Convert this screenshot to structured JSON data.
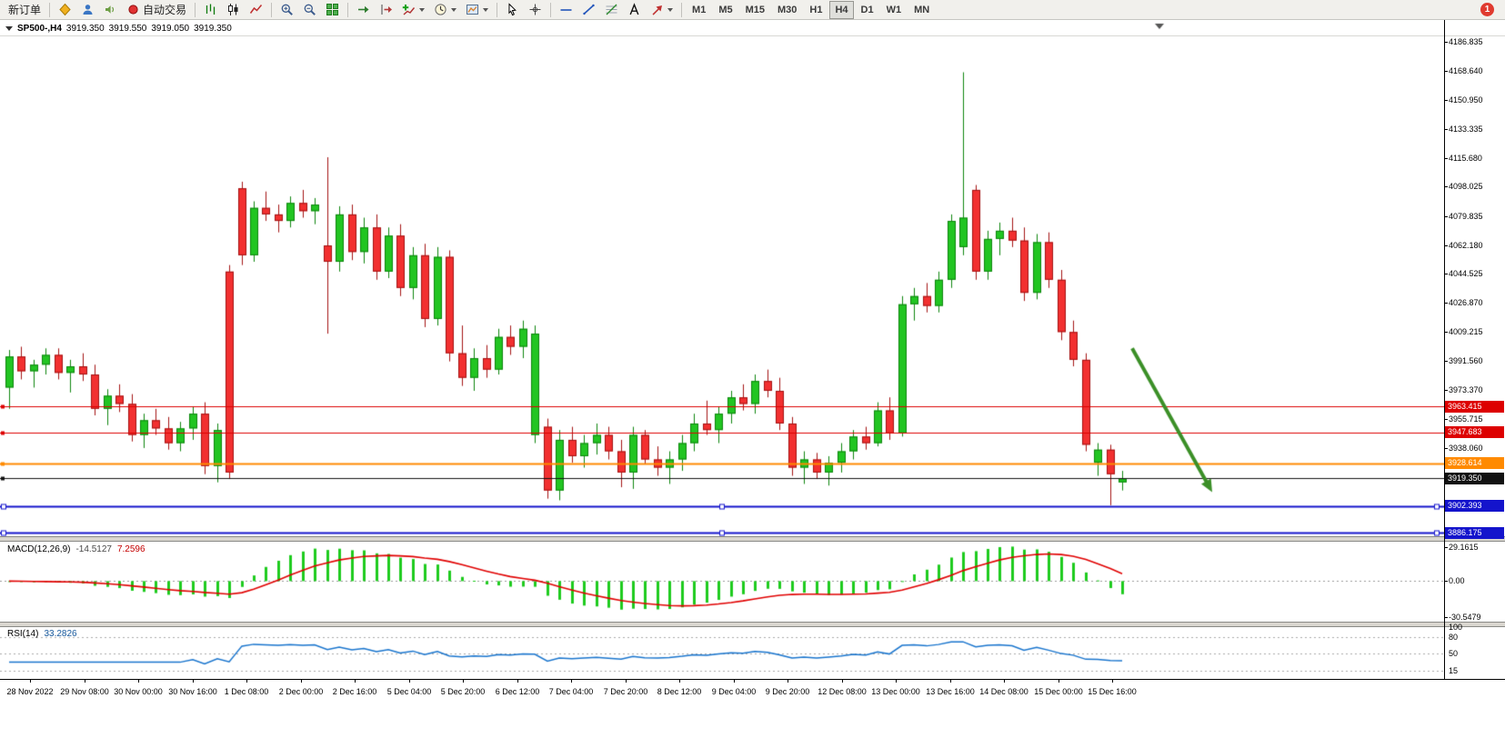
{
  "toolbar": {
    "items": [
      {
        "kind": "button",
        "name": "new-order-button",
        "label": "新订单"
      },
      {
        "kind": "sep"
      },
      {
        "kind": "icon",
        "name": "mql5-community-icon"
      },
      {
        "kind": "icon",
        "name": "account-icon"
      },
      {
        "kind": "icon",
        "name": "sound-icon"
      },
      {
        "kind": "button",
        "name": "autotrading-button",
        "label": "自动交易",
        "icon": "autotrading-icon"
      },
      {
        "kind": "sep"
      },
      {
        "kind": "icon",
        "name": "bar-chart-icon"
      },
      {
        "kind": "icon",
        "name": "candlestick-icon"
      },
      {
        "kind": "icon",
        "name": "line-chart-icon"
      },
      {
        "kind": "sep"
      },
      {
        "kind": "icon",
        "name": "zoom-in-icon"
      },
      {
        "kind": "icon",
        "name": "zoom-out-icon"
      },
      {
        "kind": "icon",
        "name": "tile-windows-icon"
      },
      {
        "kind": "sep"
      },
      {
        "kind": "icon",
        "name": "auto-scroll-icon"
      },
      {
        "kind": "icon",
        "name": "chart-shift-icon"
      },
      {
        "kind": "icon",
        "name": "indicators-icon",
        "caret": true
      },
      {
        "kind": "icon",
        "name": "periods-icon",
        "caret": true
      },
      {
        "kind": "icon",
        "name": "templates-icon",
        "caret": true
      },
      {
        "kind": "sep"
      },
      {
        "kind": "icon",
        "name": "cursor-icon"
      },
      {
        "kind": "icon",
        "name": "crosshair-icon"
      },
      {
        "kind": "sep"
      },
      {
        "kind": "icon",
        "name": "horizontal-line-icon"
      },
      {
        "kind": "icon",
        "name": "trendline-icon"
      },
      {
        "kind": "icon",
        "name": "fibonacci-icon"
      },
      {
        "kind": "icon",
        "name": "text-label-icon"
      },
      {
        "kind": "icon",
        "name": "arrows-icon",
        "caret": true
      },
      {
        "kind": "sep"
      }
    ],
    "timeframes": [
      "M1",
      "M5",
      "M15",
      "M30",
      "H1",
      "H4",
      "D1",
      "W1",
      "MN"
    ],
    "active_timeframe": "H4",
    "notification_count": "1"
  },
  "chart": {
    "header": {
      "symbol_period": "SP500-,H4",
      "open": "3919.350",
      "high": "3919.550",
      "low": "3919.050",
      "close": "3919.350"
    }
  },
  "chart_data": {
    "type": "candlestick",
    "symbol": "SP500-",
    "timeframe": "H4",
    "price_range": [
      3884,
      4200
    ],
    "candles": [
      [
        3975,
        3998,
        3962,
        3994
      ],
      [
        3994,
        4000,
        3980,
        3985
      ],
      [
        3985,
        3992,
        3975,
        3989
      ],
      [
        3989,
        3999,
        3983,
        3995
      ],
      [
        3995,
        3999,
        3980,
        3984
      ],
      [
        3984,
        3992,
        3972,
        3988
      ],
      [
        3988,
        3996,
        3979,
        3983
      ],
      [
        3983,
        3989,
        3958,
        3962
      ],
      [
        3962,
        3974,
        3952,
        3970
      ],
      [
        3970,
        3977,
        3960,
        3965
      ],
      [
        3965,
        3971,
        3942,
        3946
      ],
      [
        3946,
        3959,
        3938,
        3955
      ],
      [
        3955,
        3962,
        3946,
        3950
      ],
      [
        3950,
        3957,
        3937,
        3941
      ],
      [
        3941,
        3954,
        3936,
        3950
      ],
      [
        3950,
        3963,
        3943,
        3959
      ],
      [
        3959,
        3966,
        3922,
        3927
      ],
      [
        3927,
        3953,
        3917,
        3949
      ],
      [
        4046,
        4050,
        3919,
        3923
      ],
      [
        4097,
        4101,
        4050,
        4056
      ],
      [
        4056,
        4089,
        4052,
        4085
      ],
      [
        4085,
        4095,
        4077,
        4081
      ],
      [
        4081,
        4087,
        4070,
        4077
      ],
      [
        4077,
        4092,
        4073,
        4088
      ],
      [
        4088,
        4096,
        4079,
        4083
      ],
      [
        4083,
        4091,
        4075,
        4087
      ],
      [
        4062,
        4116,
        4008,
        4052
      ],
      [
        4052,
        4086,
        4046,
        4081
      ],
      [
        4081,
        4087,
        4053,
        4058
      ],
      [
        4058,
        4079,
        4051,
        4073
      ],
      [
        4073,
        4081,
        4041,
        4046
      ],
      [
        4046,
        4073,
        4042,
        4068
      ],
      [
        4068,
        4075,
        4031,
        4036
      ],
      [
        4036,
        4061,
        4029,
        4056
      ],
      [
        4056,
        4063,
        4012,
        4017
      ],
      [
        4017,
        4061,
        4013,
        4055
      ],
      [
        4055,
        4059,
        3991,
        3996
      ],
      [
        3996,
        4013,
        3976,
        3981
      ],
      [
        3981,
        3999,
        3973,
        3993
      ],
      [
        3993,
        4001,
        3981,
        3986
      ],
      [
        3986,
        4011,
        3983,
        4006
      ],
      [
        4006,
        4013,
        3995,
        4000
      ],
      [
        4000,
        4016,
        3993,
        4011
      ],
      [
        3946,
        4013,
        3941,
        4008
      ],
      [
        3951,
        3956,
        3907,
        3912
      ],
      [
        3912,
        3949,
        3906,
        3943
      ],
      [
        3943,
        3951,
        3929,
        3933
      ],
      [
        3933,
        3946,
        3926,
        3941
      ],
      [
        3941,
        3953,
        3934,
        3946
      ],
      [
        3946,
        3951,
        3931,
        3936
      ],
      [
        3936,
        3943,
        3914,
        3923
      ],
      [
        3923,
        3951,
        3913,
        3946
      ],
      [
        3946,
        3949,
        3928,
        3931
      ],
      [
        3931,
        3939,
        3921,
        3926
      ],
      [
        3926,
        3936,
        3916,
        3931
      ],
      [
        3931,
        3946,
        3924,
        3941
      ],
      [
        3941,
        3959,
        3936,
        3953
      ],
      [
        3953,
        3967,
        3946,
        3949
      ],
      [
        3949,
        3963,
        3941,
        3959
      ],
      [
        3959,
        3973,
        3953,
        3969
      ],
      [
        3969,
        3977,
        3961,
        3965
      ],
      [
        3965,
        3983,
        3959,
        3979
      ],
      [
        3979,
        3986,
        3969,
        3973
      ],
      [
        3973,
        3981,
        3949,
        3953
      ],
      [
        3953,
        3957,
        3921,
        3926
      ],
      [
        3926,
        3936,
        3916,
        3931
      ],
      [
        3931,
        3935,
        3919,
        3923
      ],
      [
        3923,
        3933,
        3915,
        3929
      ],
      [
        3929,
        3941,
        3923,
        3936
      ],
      [
        3936,
        3949,
        3931,
        3945
      ],
      [
        3945,
        3951,
        3937,
        3941
      ],
      [
        3941,
        3966,
        3939,
        3961
      ],
      [
        3961,
        3969,
        3943,
        3947
      ],
      [
        3947,
        4031,
        3945,
        4026
      ],
      [
        4026,
        4036,
        4016,
        4031
      ],
      [
        4031,
        4039,
        4021,
        4025
      ],
      [
        4025,
        4046,
        4021,
        4041
      ],
      [
        4041,
        4081,
        4036,
        4077
      ],
      [
        4061,
        4168,
        4056,
        4079
      ],
      [
        4096,
        4099,
        4041,
        4046
      ],
      [
        4046,
        4071,
        4041,
        4066
      ],
      [
        4066,
        4076,
        4056,
        4071
      ],
      [
        4071,
        4079,
        4061,
        4065
      ],
      [
        4065,
        4073,
        4028,
        4033
      ],
      [
        4033,
        4069,
        4029,
        4064
      ],
      [
        4064,
        4070,
        4036,
        4041
      ],
      [
        4041,
        4047,
        4004,
        4009
      ],
      [
        4009,
        4016,
        3988,
        3992
      ],
      [
        3992,
        3996,
        3936,
        3940
      ],
      [
        3929,
        3941,
        3921,
        3937
      ],
      [
        3937,
        3940,
        3903,
        3922
      ],
      [
        3917,
        3924,
        3912,
        3919.35
      ]
    ],
    "up_color": "#22c522",
    "down_color": "#f23030",
    "price_axis_labels": [
      "4186.835",
      "4168.640",
      "4150.950",
      "4133.335",
      "4115.680",
      "4098.025",
      "4079.835",
      "4062.180",
      "4044.525",
      "4026.870",
      "4009.215",
      "3991.560",
      "3973.370",
      "3955.715",
      "3938.060"
    ],
    "price_tags": [
      {
        "label": "3963.415",
        "price": 3963.415,
        "color": "#dd0000"
      },
      {
        "label": "3947.683",
        "price": 3947.683,
        "color": "#dd0000"
      },
      {
        "label": "3928.614",
        "price": 3928.614,
        "color": "#ff8a00"
      },
      {
        "label": "3919.350",
        "price": 3919.35,
        "color": "#111111"
      },
      {
        "label": "3902.393",
        "price": 3902.393,
        "color": "#1414cc"
      },
      {
        "label": "3886.175",
        "price": 3886.175,
        "color": "#1414cc"
      }
    ],
    "hlines": [
      {
        "price": 3963.415,
        "color": "#dd0000",
        "width": 1,
        "handles": false
      },
      {
        "price": 3947.683,
        "color": "#dd0000",
        "width": 1,
        "handles": false
      },
      {
        "price": 3928.614,
        "color": "#ff8a00",
        "width": 2,
        "handles": false
      },
      {
        "price": 3919.35,
        "color": "#111111",
        "width": 1,
        "handles": false
      },
      {
        "price": 3902.393,
        "color": "#1414cc",
        "width": 2,
        "handles": true
      },
      {
        "price": 3886.175,
        "color": "#1414cc",
        "width": 2,
        "handles": true
      }
    ],
    "trend_arrow": {
      "from_bar": 91.8,
      "from_price": 3999,
      "to_bar": 98.4,
      "to_price": 3911,
      "color": "#3b8f27"
    },
    "time_labels": [
      "28 Nov 2022",
      "29 Nov 08:00",
      "30 Nov 00:00",
      "30 Nov 16:00",
      "1 Dec 08:00",
      "2 Dec 00:00",
      "2 Dec 16:00",
      "5 Dec 04:00",
      "5 Dec 20:00",
      "6 Dec 12:00",
      "7 Dec 04:00",
      "7 Dec 20:00",
      "8 Dec 12:00",
      "9 Dec 04:00",
      "9 Dec 20:00",
      "12 Dec 08:00",
      "13 Dec 00:00",
      "13 Dec 16:00",
      "14 Dec 08:00",
      "15 Dec 00:00",
      "15 Dec 16:00"
    ],
    "indicators": [
      {
        "type": "MACD",
        "label": "MACD(12,26,9)",
        "params": {
          "fast": 12,
          "slow": 26,
          "signal": 9
        },
        "values": [
          "-14.5127",
          "7.2596"
        ],
        "axis_labels": [
          "29.1615",
          "0.00",
          "-30.5479"
        ],
        "histogram_color": "#1ecb1e",
        "signal_color": "#e00000"
      },
      {
        "type": "RSI",
        "label": "RSI(14)",
        "params": {
          "period": 14
        },
        "values": [
          "33.2826"
        ],
        "axis_labels": [
          "100",
          "80",
          "50",
          "15"
        ],
        "levels": [
          80,
          50,
          15
        ],
        "line_color": "#1874cd"
      }
    ]
  }
}
